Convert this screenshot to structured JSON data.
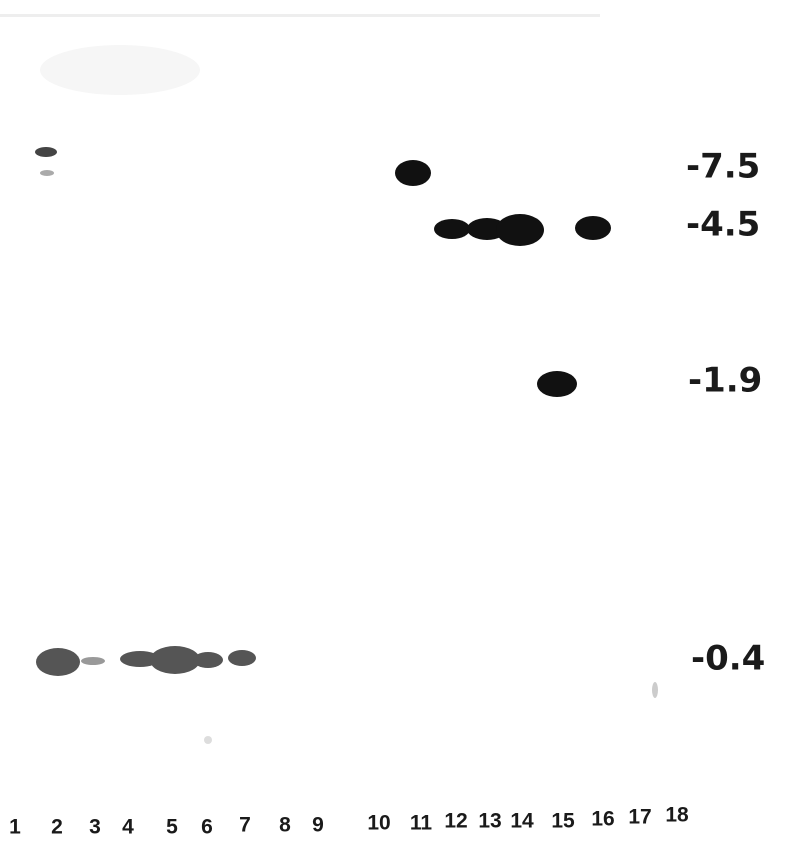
{
  "markers": [
    "-7.5",
    "-4.5",
    "-1.9",
    "-0.4"
  ],
  "lanes": [
    "1",
    "2",
    "3",
    "4",
    "5",
    "6",
    "7",
    "8",
    "9",
    "10",
    "11",
    "12",
    "13",
    "14",
    "15",
    "16",
    "17",
    "18"
  ]
}
